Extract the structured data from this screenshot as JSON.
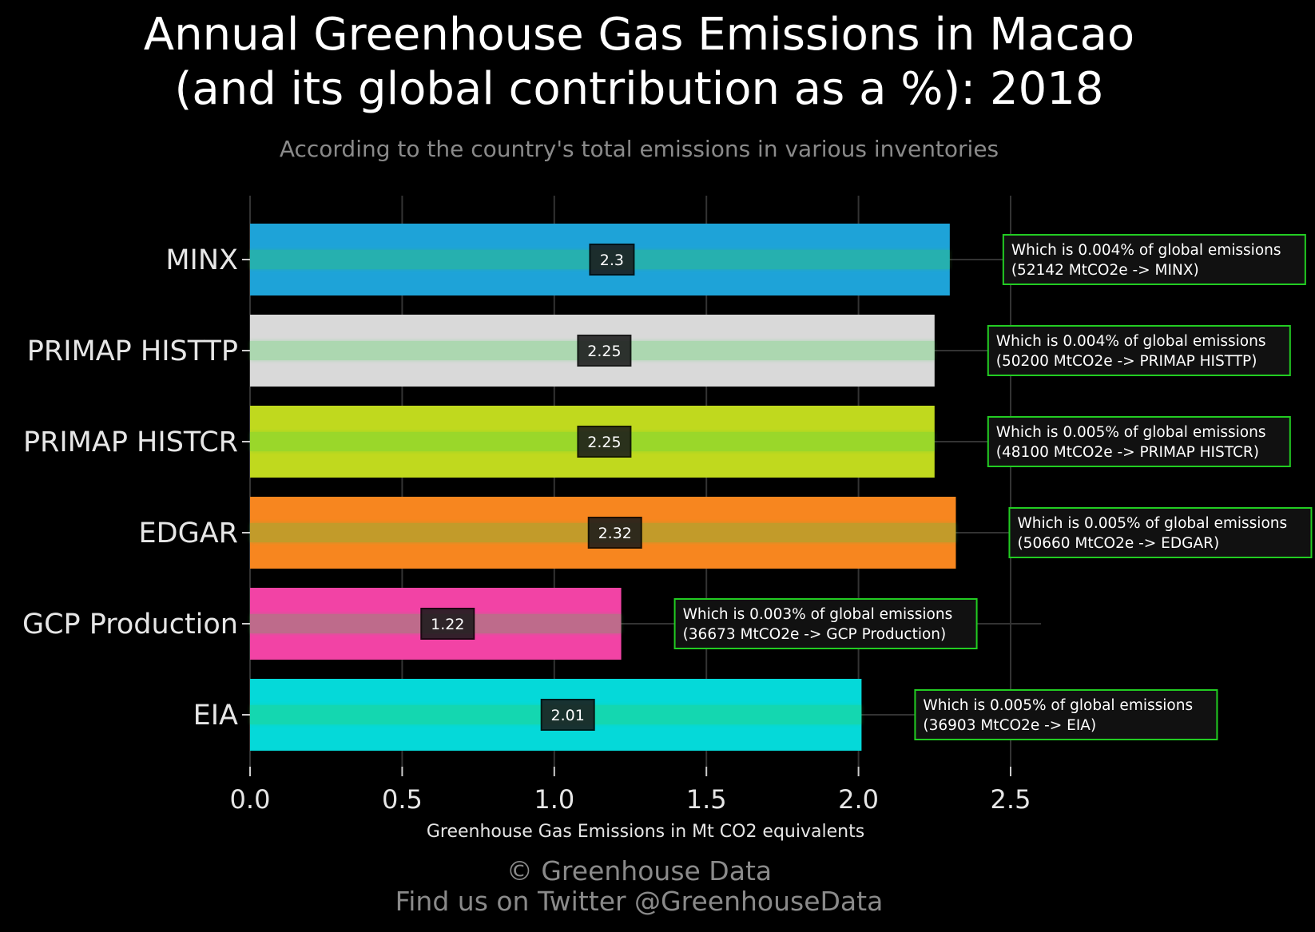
{
  "chart_data": {
    "type": "bar",
    "orientation": "horizontal",
    "title_line1": "Annual Greenhouse Gas Emissions in Macao",
    "title_line2": "(and its global contribution as a %): 2018",
    "subtitle": "According to the country's total emissions in various inventories",
    "xlabel": "Greenhouse Gas Emissions in Mt CO2 equivalents",
    "xlim": [
      0,
      2.6
    ],
    "xticks": [
      "0.0",
      "0.5",
      "1.0",
      "1.5",
      "2.0",
      "2.5"
    ],
    "grid": true,
    "categories": [
      "MINX",
      "PRIMAP HISTTP",
      "PRIMAP HISTCR",
      "EDGAR",
      "GCP Production",
      "EIA"
    ],
    "values": [
      2.3,
      2.25,
      2.25,
      2.32,
      1.22,
      2.01
    ],
    "value_labels": [
      "2.3",
      "2.25",
      "2.25",
      "2.32",
      "1.22",
      "2.01"
    ],
    "colors": [
      "#1ea3d8",
      "#d9d9d9",
      "#c0d91e",
      "#f7861f",
      "#f243a5",
      "#05d9d9"
    ],
    "annotations": [
      [
        "Which is 0.004% of global emissions",
        "(52142 MtCO2e -> MINX)"
      ],
      [
        "Which is 0.004% of global emissions",
        "(50200 MtCO2e -> PRIMAP HISTTP)"
      ],
      [
        "Which is 0.005% of global emissions",
        "(48100 MtCO2e -> PRIMAP HISTCR)"
      ],
      [
        "Which is 0.005% of global emissions",
        "(50660 MtCO2e -> EDGAR)"
      ],
      [
        "Which is 0.003% of global emissions",
        "(36673 MtCO2e -> GCP Production)"
      ],
      [
        "Which is 0.005% of global emissions",
        "(36903 MtCO2e -> EIA)"
      ]
    ]
  },
  "footer": {
    "line1": "© Greenhouse Data",
    "line2": "Find us on Twitter @GreenhouseData"
  },
  "colors": {
    "background": "#000000",
    "annotation_border": "#22cc22",
    "annotation_fill": "#111111",
    "grid": "#333333",
    "muted_text": "#8a8a8a"
  }
}
